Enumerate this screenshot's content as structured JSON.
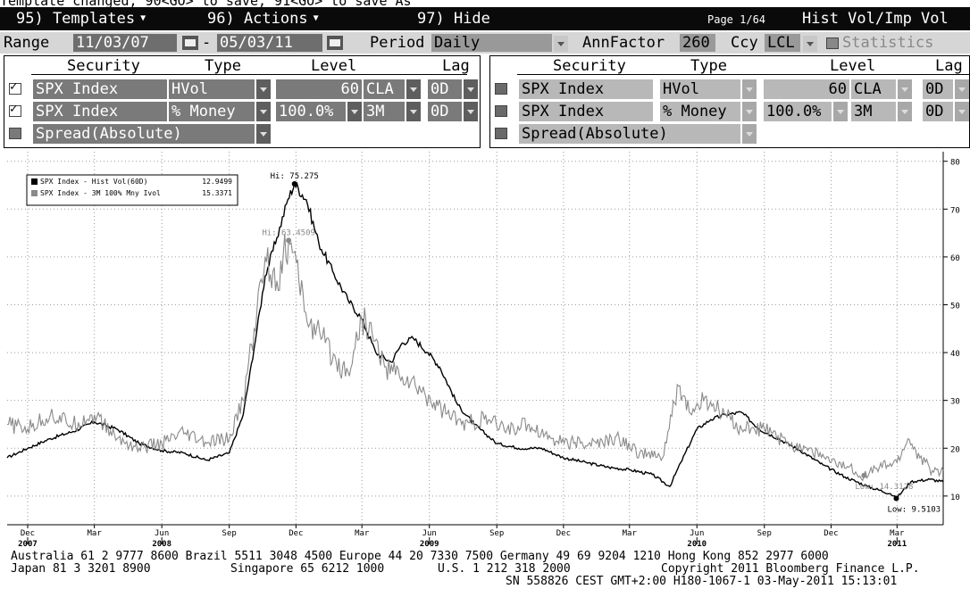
{
  "message": "Template changed, 90<GO> to save, 91<GO> to save As",
  "menubar": {
    "items": [
      "95) Templates",
      "96) Actions",
      "97) Hide"
    ],
    "page": "Page 1/64",
    "title": "Hist Vol/Imp Vol"
  },
  "range": {
    "label": "Range",
    "start": "11/03/07",
    "dash": "-",
    "end": "05/03/11",
    "period_label": "Period",
    "period": "Daily",
    "annfactor_label": "AnnFactor",
    "annfactor": "260",
    "ccy_label": "Ccy",
    "ccy": "LCL",
    "statistics": "Statistics"
  },
  "panels": [
    {
      "headers": [
        "Security",
        "Type",
        "Level",
        "Lag"
      ],
      "rows": [
        {
          "checked": true,
          "security": "SPX Index",
          "type": "HVol",
          "level": "60",
          "level2": "CLA",
          "lag": "0D"
        },
        {
          "checked": true,
          "security": "SPX Index",
          "type": "% Money",
          "level": "100.0%",
          "level2": "3M",
          "lag": "0D"
        },
        {
          "checked": false,
          "security": "Spread(Absolute)",
          "type": "",
          "level": "",
          "level2": "",
          "lag": ""
        }
      ]
    },
    {
      "headers": [
        "Security",
        "Type",
        "Level",
        "Lag"
      ],
      "rows": [
        {
          "checked": false,
          "security": "SPX Index",
          "type": "HVol",
          "level": "60",
          "level2": "CLA",
          "lag": "0D"
        },
        {
          "checked": false,
          "security": "SPX Index",
          "type": "% Money",
          "level": "100.0%",
          "level2": "3M",
          "lag": "0D"
        },
        {
          "checked": false,
          "security": "Spread(Absolute)",
          "type": "",
          "level": "",
          "level2": "",
          "lag": ""
        }
      ]
    }
  ],
  "chart_data": {
    "type": "line",
    "x_range": [
      "2007-11-03",
      "2011-05-03"
    ],
    "ylim": [
      4,
      82
    ],
    "y_ticks": [
      10,
      20,
      30,
      40,
      50,
      60,
      70,
      80
    ],
    "x_month_ticks": [
      {
        "label": "Dec",
        "date": "2007-12-01"
      },
      {
        "label": "Mar",
        "date": "2008-03-01"
      },
      {
        "label": "Jun",
        "date": "2008-06-01"
      },
      {
        "label": "Sep",
        "date": "2008-09-01"
      },
      {
        "label": "Dec",
        "date": "2008-12-01"
      },
      {
        "label": "Mar",
        "date": "2009-03-01"
      },
      {
        "label": "Jun",
        "date": "2009-06-01"
      },
      {
        "label": "Sep",
        "date": "2009-09-01"
      },
      {
        "label": "Dec",
        "date": "2009-12-01"
      },
      {
        "label": "Mar",
        "date": "2010-03-01"
      },
      {
        "label": "Jun",
        "date": "2010-06-01"
      },
      {
        "label": "Sep",
        "date": "2010-09-01"
      },
      {
        "label": "Dec",
        "date": "2010-12-01"
      },
      {
        "label": "Mar",
        "date": "2011-03-01"
      }
    ],
    "x_year_ticks": [
      {
        "label": "2007",
        "date": "2007-12-01"
      },
      {
        "label": "2008",
        "date": "2008-06-01"
      },
      {
        "label": "2009",
        "date": "2009-06-01"
      },
      {
        "label": "2010",
        "date": "2010-06-01"
      },
      {
        "label": "2011",
        "date": "2011-03-01"
      }
    ],
    "grid": true,
    "legend_position": "top-left",
    "series": [
      {
        "name": "SPX Index - Hist Vol(60D)",
        "last": "12.9499",
        "color": "#000000",
        "points": [
          [
            "2007-11-03",
            18
          ],
          [
            "2007-12-01",
            20
          ],
          [
            "2008-01-01",
            22
          ],
          [
            "2008-02-01",
            23.5
          ],
          [
            "2008-03-01",
            25.5
          ],
          [
            "2008-04-01",
            24
          ],
          [
            "2008-05-01",
            21
          ],
          [
            "2008-06-01",
            19.5
          ],
          [
            "2008-07-01",
            19
          ],
          [
            "2008-08-01",
            17.5
          ],
          [
            "2008-09-01",
            19
          ],
          [
            "2008-09-20",
            27
          ],
          [
            "2008-10-05",
            41
          ],
          [
            "2008-10-20",
            56
          ],
          [
            "2008-11-05",
            64
          ],
          [
            "2008-11-20",
            72
          ],
          [
            "2008-11-29",
            75.275
          ],
          [
            "2008-12-15",
            72
          ],
          [
            "2009-01-01",
            63
          ],
          [
            "2009-01-20",
            57
          ],
          [
            "2009-02-10",
            51
          ],
          [
            "2009-03-01",
            47
          ],
          [
            "2009-03-20",
            40
          ],
          [
            "2009-04-10",
            38
          ],
          [
            "2009-04-25",
            42
          ],
          [
            "2009-05-10",
            43
          ],
          [
            "2009-05-30",
            40
          ],
          [
            "2009-06-15",
            37
          ],
          [
            "2009-07-10",
            29
          ],
          [
            "2009-08-01",
            25
          ],
          [
            "2009-09-01",
            21
          ],
          [
            "2009-10-01",
            20
          ],
          [
            "2009-11-01",
            20
          ],
          [
            "2009-12-01",
            18
          ],
          [
            "2010-01-01",
            17
          ],
          [
            "2010-02-01",
            16
          ],
          [
            "2010-03-01",
            15.5
          ],
          [
            "2010-04-01",
            14.5
          ],
          [
            "2010-04-25",
            12
          ],
          [
            "2010-05-10",
            17
          ],
          [
            "2010-06-01",
            24
          ],
          [
            "2010-06-20",
            26
          ],
          [
            "2010-07-10",
            27
          ],
          [
            "2010-08-01",
            27.5
          ],
          [
            "2010-08-25",
            24
          ],
          [
            "2010-09-20",
            22
          ],
          [
            "2010-10-20",
            19.5
          ],
          [
            "2010-11-20",
            16.5
          ],
          [
            "2010-12-20",
            14
          ],
          [
            "2011-01-20",
            12
          ],
          [
            "2011-02-20",
            10.5
          ],
          [
            "2011-02-28",
            9.5103
          ],
          [
            "2011-03-20",
            13
          ],
          [
            "2011-04-15",
            13.5
          ],
          [
            "2011-05-03",
            12.9499
          ]
        ]
      },
      {
        "name": "SPX Index - 3M 100% Mny Ivol",
        "last": "15.3371",
        "color": "#8a8a8a",
        "points": [
          [
            "2007-11-03",
            25
          ],
          [
            "2007-12-01",
            24
          ],
          [
            "2008-01-01",
            27
          ],
          [
            "2008-02-01",
            25
          ],
          [
            "2008-03-01",
            27
          ],
          [
            "2008-04-01",
            22
          ],
          [
            "2008-05-01",
            20
          ],
          [
            "2008-06-01",
            21
          ],
          [
            "2008-07-01",
            23
          ],
          [
            "2008-08-01",
            21
          ],
          [
            "2008-09-01",
            22
          ],
          [
            "2008-09-20",
            30
          ],
          [
            "2008-10-05",
            45
          ],
          [
            "2008-10-20",
            60
          ],
          [
            "2008-11-05",
            55
          ],
          [
            "2008-11-21",
            63.4509
          ],
          [
            "2008-12-05",
            55
          ],
          [
            "2008-12-20",
            46
          ],
          [
            "2009-01-10",
            42
          ],
          [
            "2009-01-25",
            38
          ],
          [
            "2009-02-10",
            36
          ],
          [
            "2009-03-01",
            47
          ],
          [
            "2009-03-15",
            44
          ],
          [
            "2009-04-01",
            37
          ],
          [
            "2009-04-25",
            35
          ],
          [
            "2009-05-20",
            32
          ],
          [
            "2009-06-20",
            28
          ],
          [
            "2009-07-15",
            25
          ],
          [
            "2009-08-15",
            26
          ],
          [
            "2009-09-15",
            24
          ],
          [
            "2009-10-15",
            25
          ],
          [
            "2009-11-15",
            22
          ],
          [
            "2009-12-15",
            21
          ],
          [
            "2010-01-15",
            21
          ],
          [
            "2010-02-15",
            22
          ],
          [
            "2010-03-15",
            19
          ],
          [
            "2010-04-15",
            18
          ],
          [
            "2010-05-07",
            33
          ],
          [
            "2010-05-25",
            27
          ],
          [
            "2010-06-10",
            30
          ],
          [
            "2010-07-01",
            28
          ],
          [
            "2010-08-01",
            24
          ],
          [
            "2010-09-01",
            24
          ],
          [
            "2010-10-01",
            21
          ],
          [
            "2010-11-01",
            20
          ],
          [
            "2010-12-01",
            17
          ],
          [
            "2010-12-25",
            16
          ],
          [
            "2011-01-15",
            14.3
          ],
          [
            "2011-02-05",
            16
          ],
          [
            "2011-03-01",
            17
          ],
          [
            "2011-03-16",
            22
          ],
          [
            "2011-04-01",
            18
          ],
          [
            "2011-04-20",
            15
          ],
          [
            "2011-05-03",
            15.3371
          ]
        ]
      }
    ],
    "annotations": [
      {
        "label": "Hi: 75.275",
        "date": "2008-11-29",
        "value": 75.275,
        "series": 0
      },
      {
        "label": "Hi: 63.4509",
        "date": "2008-11-21",
        "value": 63.4509,
        "series": 1
      },
      {
        "label": "Low: 9.5103",
        "date": "2011-02-28",
        "value": 9.5103,
        "series": 0
      },
      {
        "label": "Low: 14.3128",
        "date": "2011-01-15",
        "value": 14.3,
        "series": 1
      }
    ]
  },
  "footer": {
    "line1": "Australia 61 2 9777 8600 Brazil 5511 3048 4500 Europe 44 20 7330 7500 Germany 49 69 9204 1210 Hong Kong 852 2977 6000",
    "line2a": "Japan 81 3 3201 8900",
    "line2b": "Singapore 65 6212 1000",
    "line2c": "U.S. 1 212 318 2000",
    "line2d": "Copyright 2011 Bloomberg Finance L.P.",
    "line3": "SN 558826 CEST GMT+2:00 H180-1067-1 03-May-2011 15:13:01"
  }
}
